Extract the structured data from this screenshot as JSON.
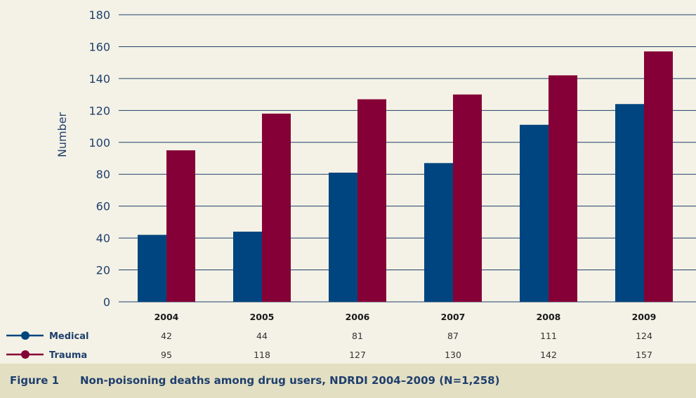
{
  "figure": {
    "label": "Figure 1",
    "title": "Non-poisoning deaths among drug users, NDRDI 2004–2009 (N=1,258)"
  },
  "colors": {
    "medical": "#00457f",
    "trauma": "#850036",
    "axis_text": "#1f3f6d",
    "gridline": "#1f3f6d",
    "background": "#f4f2e6",
    "caption_bg": "#e3dfc3"
  },
  "chart_data": {
    "type": "bar",
    "ylabel": "Number",
    "xlabel": "",
    "ylim": [
      0,
      180
    ],
    "yticks": [
      0,
      20,
      40,
      60,
      80,
      100,
      120,
      140,
      160,
      180
    ],
    "grid": true,
    "categories": [
      "2004",
      "2005",
      "2006",
      "2007",
      "2008",
      "2009"
    ],
    "series": [
      {
        "name": "Medical",
        "values": [
          42,
          44,
          81,
          87,
          111,
          124
        ]
      },
      {
        "name": "Trauma",
        "values": [
          95,
          118,
          127,
          130,
          142,
          157
        ]
      }
    ],
    "legend_placement": "bottom-left, as data table rows"
  }
}
